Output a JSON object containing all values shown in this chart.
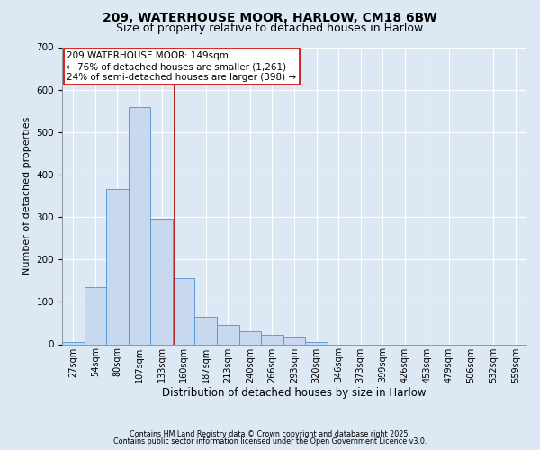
{
  "title1": "209, WATERHOUSE MOOR, HARLOW, CM18 6BW",
  "title2": "Size of property relative to detached houses in Harlow",
  "xlabel": "Distribution of detached houses by size in Harlow",
  "ylabel": "Number of detached properties",
  "categories": [
    "27sqm",
    "54sqm",
    "80sqm",
    "107sqm",
    "133sqm",
    "160sqm",
    "187sqm",
    "213sqm",
    "240sqm",
    "266sqm",
    "293sqm",
    "320sqm",
    "346sqm",
    "373sqm",
    "399sqm",
    "426sqm",
    "453sqm",
    "479sqm",
    "506sqm",
    "532sqm",
    "559sqm"
  ],
  "values": [
    5,
    135,
    365,
    560,
    295,
    155,
    65,
    45,
    30,
    22,
    18,
    6,
    0,
    0,
    0,
    0,
    0,
    0,
    0,
    0,
    0
  ],
  "bar_color": "#c8d8ee",
  "bar_edge_color": "#5b9bd5",
  "vline_pos": 4.59,
  "vline_color": "#aa0000",
  "annotation_text": "209 WATERHOUSE MOOR: 149sqm\n← 76% of detached houses are smaller (1,261)\n24% of semi-detached houses are larger (398) →",
  "annotation_box_color": "#ffffff",
  "annotation_box_edge": "#cc0000",
  "ylim": [
    0,
    700
  ],
  "yticks": [
    0,
    100,
    200,
    300,
    400,
    500,
    600,
    700
  ],
  "footer1": "Contains HM Land Registry data © Crown copyright and database right 2025.",
  "footer2": "Contains public sector information licensed under the Open Government Licence v3.0.",
  "bg_color": "#dde8f5",
  "plot_bg_color": "#dde8f5",
  "title_fontsize": 10,
  "subtitle_fontsize": 9,
  "tick_fontsize": 7,
  "annotation_fontsize": 7.5,
  "xlabel_fontsize": 8.5,
  "ylabel_fontsize": 8
}
